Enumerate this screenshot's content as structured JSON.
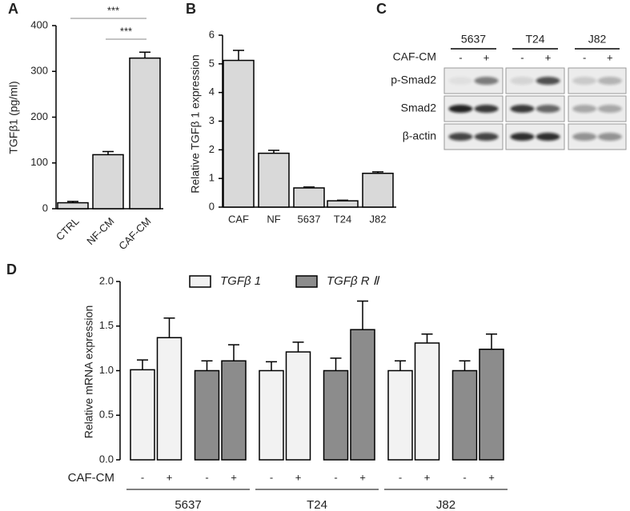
{
  "chart_data": [
    {
      "type": "bar",
      "panel": "A",
      "y_label": "TGFβ1 (pg/ml)",
      "categories": [
        "CTRL",
        "NF-CM",
        "CAF-CM"
      ],
      "values": [
        13,
        118,
        329
      ],
      "errors": [
        3,
        7,
        13
      ],
      "color": "#d9d9d9",
      "ylim": [
        0,
        400
      ],
      "yticks": [
        0,
        100,
        200,
        300,
        400
      ],
      "annotations": [
        "***",
        "***"
      ]
    },
    {
      "type": "bar",
      "panel": "B",
      "y_label": "Relative TGFβ 1 expression",
      "categories": [
        "CAF",
        "NF",
        "5637",
        "T24",
        "J82"
      ],
      "values": [
        5.12,
        1.88,
        0.67,
        0.22,
        1.18
      ],
      "errors": [
        0.35,
        0.1,
        0.03,
        0.02,
        0.05
      ],
      "color": "#d9d9d9",
      "ylim": [
        0,
        6
      ],
      "yticks": [
        0,
        1,
        2,
        3,
        4,
        5,
        6
      ]
    },
    {
      "type": "grouped-bar",
      "panel": "D",
      "y_label": "Relative mRNA expression",
      "row_label": "CAF-CM",
      "categories": [
        "-",
        "+",
        "-",
        "+",
        "-",
        "+",
        "-",
        "+",
        "-",
        "+",
        "-",
        "+"
      ],
      "groups": [
        "5637",
        "T24",
        "J82"
      ],
      "series": [
        {
          "name": "TGFβ 1",
          "color": "#f2f2f2",
          "values": [
            1.01,
            1.37,
            null,
            null,
            1.0,
            1.21,
            null,
            null,
            1.0,
            1.31,
            null,
            null
          ],
          "errors": [
            0.11,
            0.22,
            null,
            null,
            0.1,
            0.11,
            null,
            null,
            0.11,
            0.1,
            null,
            null
          ]
        },
        {
          "name": "TGFβ R Ⅱ",
          "color": "#8c8c8c",
          "values": [
            null,
            null,
            1.0,
            1.11,
            null,
            null,
            1.0,
            1.46,
            null,
            null,
            1.0,
            1.24
          ],
          "errors": [
            null,
            null,
            0.11,
            0.18,
            null,
            null,
            0.14,
            0.32,
            null,
            null,
            0.11,
            0.17
          ]
        }
      ],
      "ylim": [
        0,
        2
      ],
      "yticks": [
        {
          "value": 0,
          "label": "0.0"
        },
        {
          "value": 0.5,
          "label": "0.5"
        },
        {
          "value": 1,
          "label": "1.0"
        },
        {
          "value": 1.5,
          "label": "1.5"
        },
        {
          "value": 2,
          "label": "2.0"
        }
      ]
    }
  ],
  "blot": {
    "panel": "C",
    "cell_lines": [
      "5637",
      "T24",
      "J82"
    ],
    "treatment_label": "CAF-CM",
    "lanes": [
      "-",
      "+",
      "-",
      "+",
      "-",
      "+"
    ],
    "rows": [
      "p-Smad2",
      "Smad2",
      "β-actin"
    ]
  }
}
